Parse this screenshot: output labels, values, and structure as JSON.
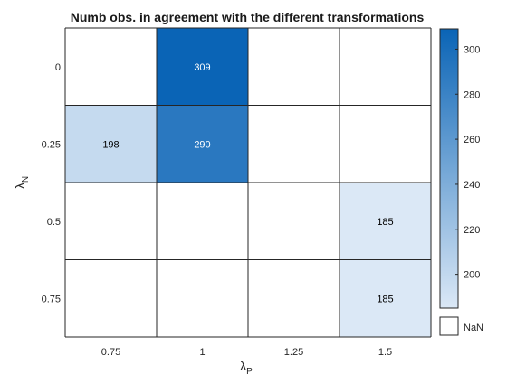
{
  "chart_data": {
    "type": "heatmap",
    "title": "Numb obs. in agreement with the different transformations",
    "xlabel_main": "λ",
    "xlabel_sub": "P",
    "ylabel_main": "λ",
    "ylabel_sub": "N",
    "x_categories": [
      "0.75",
      "1",
      "1.25",
      "1.5"
    ],
    "y_categories": [
      "0",
      "0.25",
      "0.5",
      "0.75"
    ],
    "values": [
      [
        null,
        309,
        null,
        null
      ],
      [
        198,
        290,
        null,
        null
      ],
      [
        null,
        null,
        null,
        185
      ],
      [
        null,
        null,
        null,
        185
      ]
    ],
    "colorbar": {
      "min": 185,
      "max": 309,
      "ticks": [
        200,
        220,
        240,
        260,
        280,
        300
      ],
      "color_low": "#dbe8f6",
      "color_high": "#0a64b6",
      "nan_label": "NaN",
      "nan_color": "#ffffff"
    },
    "text_color_dark": "#000000",
    "text_color_light": "#ffffff",
    "grid": true
  }
}
